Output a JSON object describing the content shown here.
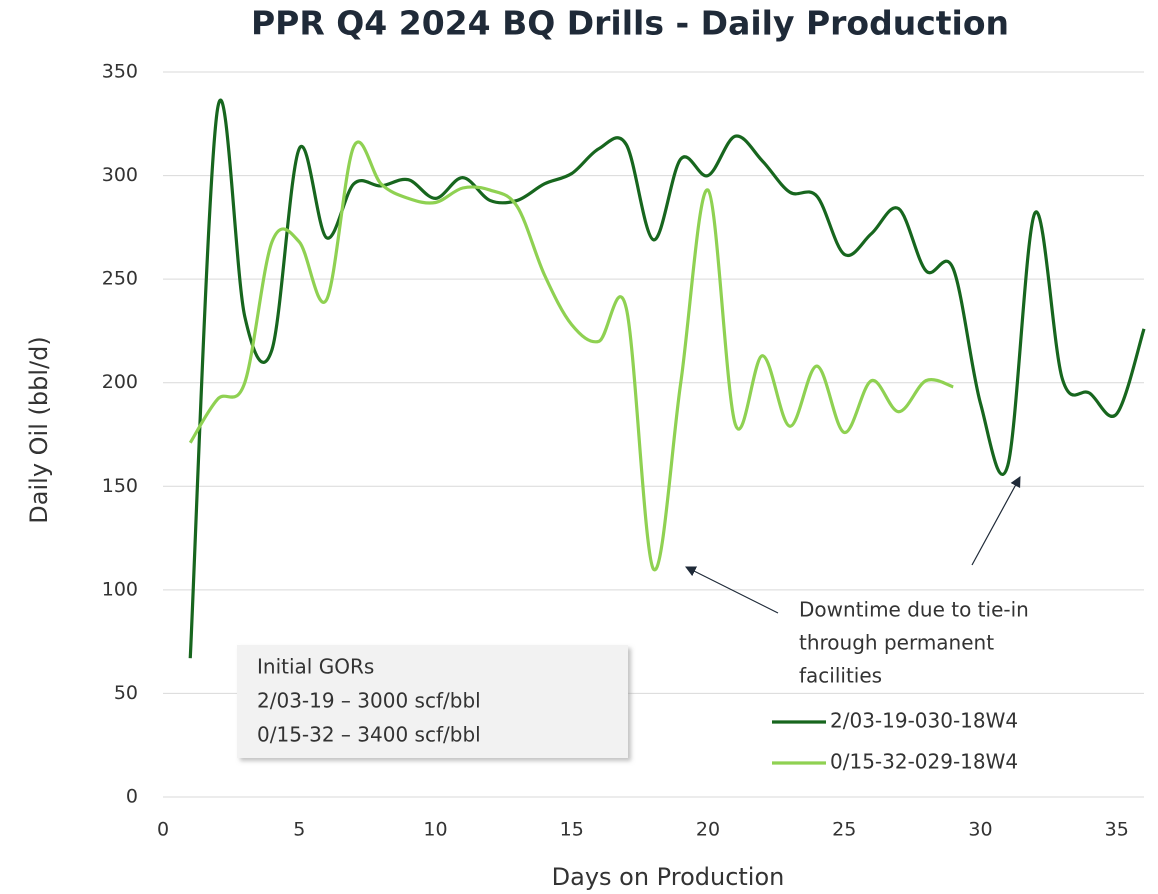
{
  "chart_data": {
    "type": "line",
    "title": "PPR Q4 2024 BQ Drills - Daily Production",
    "x_label": "Days on Production",
    "y_label": "Daily Oil (bbl/d)",
    "x": [
      1,
      2,
      3,
      4,
      5,
      6,
      7,
      8,
      9,
      10,
      11,
      12,
      13,
      14,
      15,
      16,
      17,
      18,
      19,
      20,
      21,
      22,
      23,
      24,
      25,
      26,
      27,
      28,
      29,
      30,
      31,
      32,
      33,
      34,
      35,
      36
    ],
    "series": [
      {
        "name": "2/03-19-030-18W4",
        "color": "#17661e",
        "values": [
          67,
          332,
          232,
          216,
          313,
          270,
          296,
          295,
          298,
          289,
          299,
          288,
          288,
          296,
          301,
          313,
          315,
          269,
          308,
          300,
          319,
          307,
          292,
          290,
          262,
          272,
          284,
          254,
          255,
          190,
          160,
          282,
          202,
          195,
          185,
          226
        ]
      },
      {
        "name": "0/15-32-029-18W4",
        "color": "#8fd152",
        "values": [
          171,
          192,
          200,
          268,
          268,
          240,
          314,
          296,
          289,
          287,
          294,
          293,
          285,
          252,
          228,
          220,
          236,
          110,
          200,
          293,
          180,
          213,
          179,
          208,
          176,
          201,
          186,
          201,
          198,
          null,
          null,
          null,
          null,
          null,
          null,
          null
        ]
      }
    ],
    "xlim": [
      0,
      36
    ],
    "xticks": [
      0,
      5,
      10,
      15,
      20,
      25,
      30,
      35
    ],
    "ylim": [
      0,
      350
    ],
    "yticks": [
      0,
      50,
      100,
      150,
      200,
      250,
      300,
      350
    ],
    "grid": true,
    "legend": "lower right",
    "annotations": {
      "gor_box": [
        "Initial GORs",
        "2/03-19 – 3000 scf/bbl",
        "0/15-32 – 3400 scf/bbl"
      ],
      "downtime": [
        "Downtime due to tie-in",
        "through permanent",
        "facilities"
      ]
    }
  }
}
